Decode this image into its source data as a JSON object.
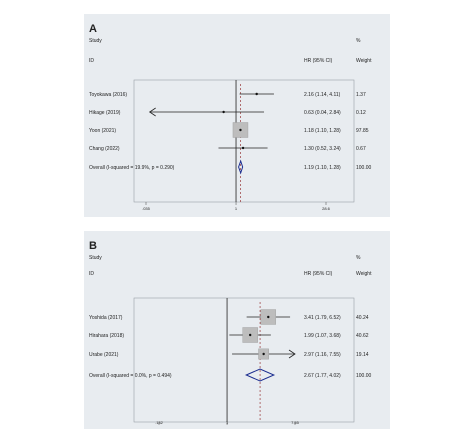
{
  "chart_data": [
    {
      "type": "forest",
      "panel_label": "A",
      "header": {
        "study": "Study",
        "id": "ID",
        "hr": "HR (95% CI)",
        "pct": "%",
        "weight": "Weight"
      },
      "axis": {
        "scale": "log",
        "reference": 1,
        "ticks": [
          0.0349,
          1,
          28.6
        ],
        "tick_labels": [
          ".035",
          "1",
          "28.6"
        ]
      },
      "studies": [
        {
          "name": "Toyokawa (2016)",
          "hr": 2.16,
          "lo": 1.14,
          "hi": 4.11,
          "ci_text": "2.16 (1.14, 4.11)",
          "weight": 1.37,
          "weight_text": "1.37",
          "arrow_left": false,
          "arrow_right": false
        },
        {
          "name": "Hikage (2019)",
          "hr": 0.63,
          "lo": 0.04,
          "hi": 2.84,
          "ci_text": "0.63 (0.04, 2.84)",
          "weight": 0.12,
          "weight_text": "0.12",
          "arrow_left": true,
          "arrow_right": false
        },
        {
          "name": "Yoon (2021)",
          "hr": 1.18,
          "lo": 1.1,
          "hi": 1.28,
          "ci_text": "1.18 (1.10, 1.28)",
          "weight": 97.85,
          "weight_text": "97.85",
          "arrow_left": false,
          "arrow_right": false
        },
        {
          "name": "Chang (2022)",
          "hr": 1.3,
          "lo": 0.52,
          "hi": 3.24,
          "ci_text": "1.30 (0.52, 3.24)",
          "weight": 0.67,
          "weight_text": "0.67",
          "arrow_left": false,
          "arrow_right": false
        }
      ],
      "overall": {
        "label": "Overall  (I-squared = 19.9%, p = 0.290)",
        "hr": 1.19,
        "lo": 1.1,
        "hi": 1.28,
        "ci_text": "1.19 (1.10, 1.28)",
        "weight_text": "100.00"
      }
    },
    {
      "type": "forest",
      "panel_label": "B",
      "header": {
        "study": "Study",
        "id": "ID",
        "hr": "HR (95% CI)",
        "pct": "%",
        "weight": "Weight"
      },
      "axis": {
        "scale": "log",
        "reference": 1,
        "ticks": [
          0.132,
          1,
          7.55
        ],
        "tick_labels": [
          ".132",
          "1",
          "7.55"
        ]
      },
      "studies": [
        {
          "name": "Yoshida (2017)",
          "hr": 3.41,
          "lo": 1.79,
          "hi": 6.52,
          "ci_text": "3.41 (1.79, 6.52)",
          "weight": 40.24,
          "weight_text": "40.24",
          "arrow_left": false,
          "arrow_right": false
        },
        {
          "name": "Hirahara (2018)",
          "hr": 1.99,
          "lo": 1.07,
          "hi": 3.68,
          "ci_text": "1.99 (1.07, 3.68)",
          "weight": 40.62,
          "weight_text": "40.62",
          "arrow_left": false,
          "arrow_right": false
        },
        {
          "name": "Urabe (2021)",
          "hr": 2.97,
          "lo": 1.16,
          "hi": 7.55,
          "ci_text": "2.97 (1.16, 7.55)",
          "weight": 19.14,
          "weight_text": "19.14",
          "arrow_left": false,
          "arrow_right": true
        }
      ],
      "overall": {
        "label": "Overall  (I-squared = 0.0%, p = 0.494)",
        "hr": 2.67,
        "lo": 1.77,
        "hi": 4.02,
        "ci_text": "2.67 (1.77, 4.02)",
        "weight_text": "100.00"
      }
    }
  ]
}
